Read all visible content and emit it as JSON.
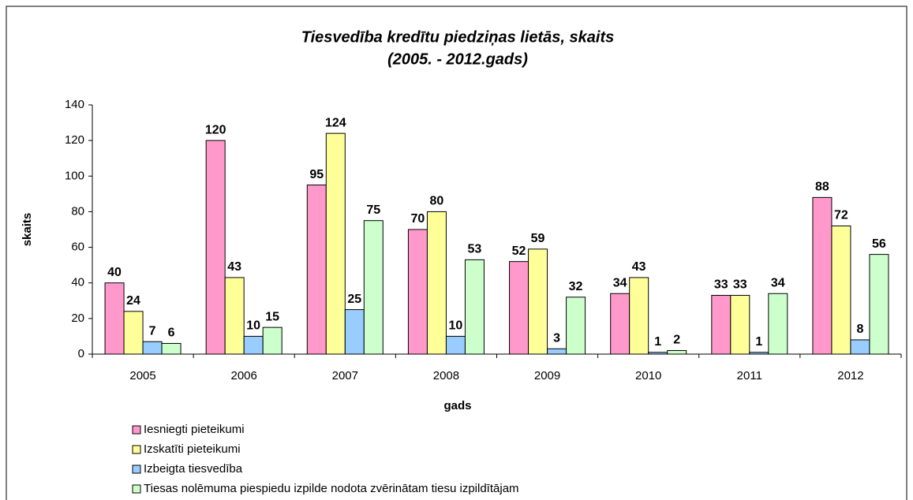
{
  "chart_data": {
    "type": "bar",
    "title": "Tiesvedība kredītu piedziņas lietās, skaits",
    "subtitle": "(2005. - 2012.gads)",
    "x_label": "gads",
    "y_label": "skaits",
    "categories": [
      "2005",
      "2006",
      "2007",
      "2008",
      "2009",
      "2010",
      "2011",
      "2012"
    ],
    "series": [
      {
        "name": "Iesniegti pieteikumi",
        "color": "#ff99cc",
        "values": [
          40,
          120,
          95,
          70,
          52,
          34,
          33,
          88
        ]
      },
      {
        "name": "Izskatīti pieteikumi",
        "color": "#ffff99",
        "values": [
          24,
          43,
          124,
          80,
          59,
          43,
          33,
          72
        ]
      },
      {
        "name": "Izbeigta tiesvedība",
        "color": "#99ccff",
        "values": [
          7,
          10,
          25,
          10,
          3,
          1,
          1,
          8
        ]
      },
      {
        "name": "Tiesas nolēmuma piespiedu izpilde nodota zvērinātam tiesu izpildītājam",
        "color": "#ccffcc",
        "values": [
          6,
          15,
          75,
          53,
          32,
          2,
          34,
          56
        ]
      }
    ],
    "ylim": [
      0,
      140
    ],
    "yticks": [
      0,
      20,
      40,
      60,
      80,
      100,
      120,
      140
    ],
    "grid": false,
    "legend": "bottom-left"
  }
}
